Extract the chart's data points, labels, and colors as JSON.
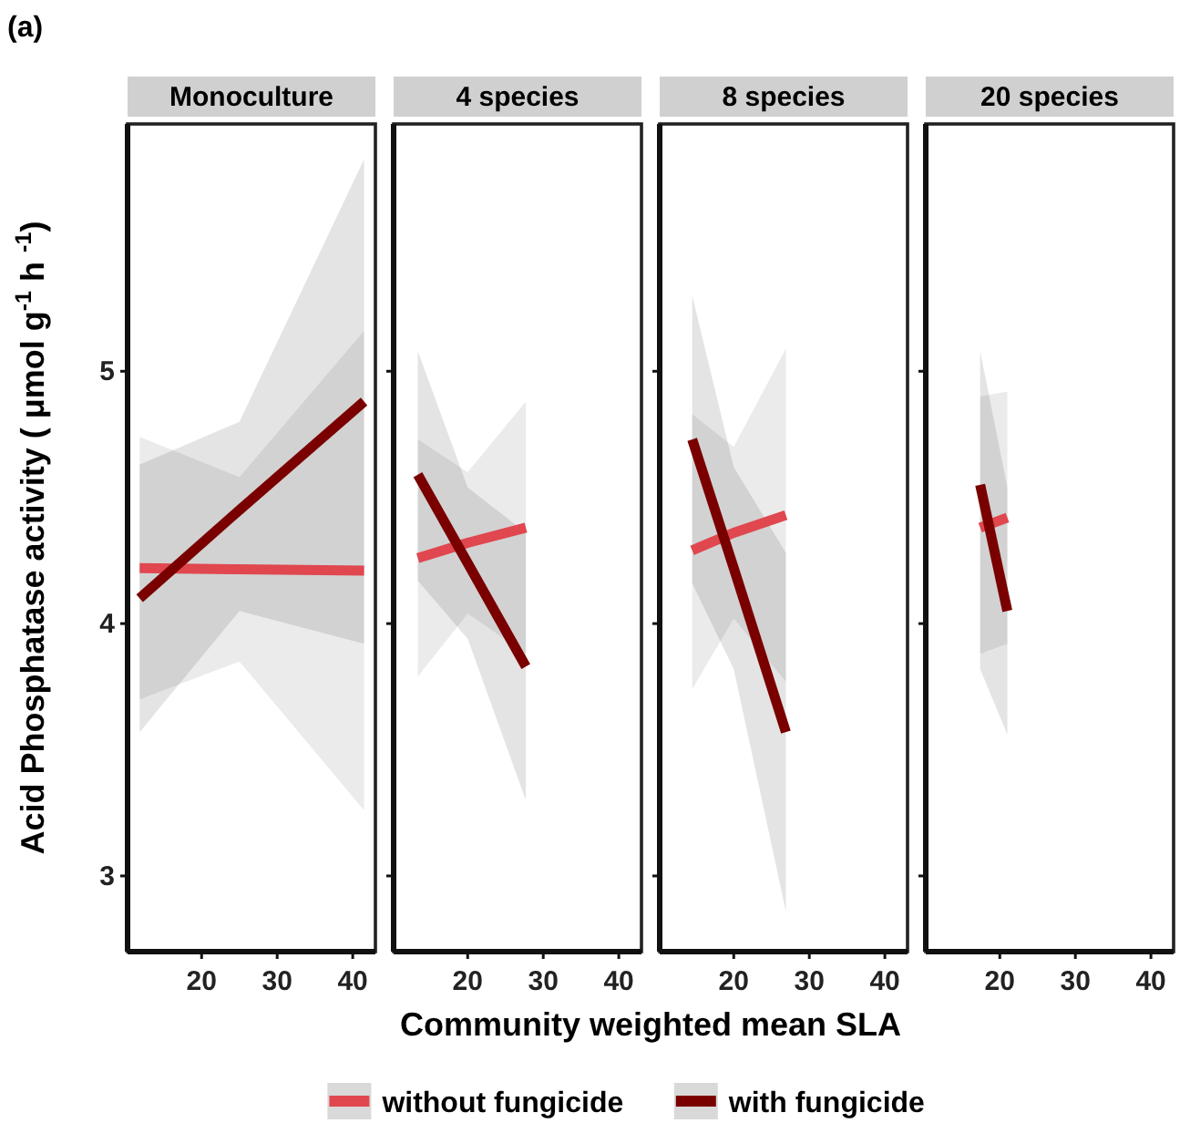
{
  "chart_data": [
    {
      "type": "line",
      "title": "Monoculture",
      "annotations": [
        "(a)"
      ],
      "xlabel": "Community weighted mean SLA",
      "ylabel": "Acid Phosphatase activity ( μmol g$^{-1}$ h $^{-1}$)",
      "legend": "bottom",
      "xlim": [
        10.2,
        43
      ],
      "xticks": [
        20,
        30,
        40
      ],
      "ylim": [
        2.7,
        5.98
      ],
      "yticks": [
        3,
        4,
        5
      ],
      "series": [
        {
          "name": "without fungicide",
          "color": "#e0474f",
          "x": [
            11.8,
            25,
            41.5
          ],
          "values": [
            4.22,
            4.215,
            4.21
          ],
          "lower": [
            3.7,
            3.85,
            3.26
          ],
          "upper": [
            4.74,
            4.58,
            5.16
          ]
        },
        {
          "name": "with fungicide",
          "color": "#7a0000",
          "x": [
            11.8,
            25,
            41.5
          ],
          "values": [
            4.1,
            4.45,
            4.88
          ],
          "lower": [
            3.57,
            4.05,
            3.92
          ],
          "upper": [
            4.63,
            4.8,
            5.84
          ]
        }
      ]
    },
    {
      "type": "line",
      "title": "4 species",
      "tick_labels": "x",
      "xlim": [
        10.2,
        43
      ],
      "xticks": [
        20,
        30,
        40
      ],
      "ylim": [
        2.7,
        5.98
      ],
      "yticks": [
        3,
        4,
        5
      ],
      "series": [
        {
          "color": "#e0474f",
          "x": [
            13.4,
            20,
            27.7
          ],
          "values": [
            4.26,
            4.32,
            4.38
          ],
          "lower": [
            3.79,
            4.04,
            3.88
          ],
          "upper": [
            4.73,
            4.6,
            4.88
          ]
        },
        {
          "color": "#7a0000",
          "x": [
            13.4,
            20,
            27.7
          ],
          "values": [
            4.59,
            4.24,
            3.83
          ],
          "lower": [
            4.17,
            3.94,
            3.3
          ],
          "upper": [
            5.08,
            4.54,
            4.36
          ]
        }
      ]
    },
    {
      "type": "line",
      "title": "8 species",
      "tick_labels": "x",
      "xlim": [
        10.2,
        43
      ],
      "xticks": [
        20,
        30,
        40
      ],
      "ylim": [
        2.7,
        5.98
      ],
      "yticks": [
        3,
        4,
        5
      ],
      "series": [
        {
          "color": "#e0474f",
          "x": [
            14.5,
            20,
            26.9
          ],
          "values": [
            4.29,
            4.36,
            4.43
          ],
          "lower": [
            3.74,
            4.02,
            3.77
          ],
          "upper": [
            4.83,
            4.7,
            5.09
          ]
        },
        {
          "color": "#7a0000",
          "x": [
            14.5,
            20,
            26.9
          ],
          "values": [
            4.73,
            4.22,
            3.57
          ],
          "lower": [
            4.16,
            3.82,
            2.86
          ],
          "upper": [
            5.3,
            4.62,
            4.28
          ]
        }
      ]
    },
    {
      "type": "line",
      "title": "20 species",
      "tick_labels": "x",
      "xlim": [
        10.2,
        43
      ],
      "xticks": [
        20,
        30,
        40
      ],
      "ylim": [
        2.7,
        5.98
      ],
      "yticks": [
        3,
        4,
        5
      ],
      "series": [
        {
          "color": "#e0474f",
          "x": [
            17.4,
            21
          ],
          "values": [
            4.38,
            4.42
          ],
          "lower": [
            3.88,
            3.92
          ],
          "upper": [
            4.9,
            4.92
          ]
        },
        {
          "color": "#7a0000",
          "x": [
            17.4,
            21
          ],
          "values": [
            4.55,
            4.05
          ],
          "lower": [
            3.82,
            3.56
          ],
          "upper": [
            5.08,
            4.54
          ]
        }
      ]
    }
  ]
}
